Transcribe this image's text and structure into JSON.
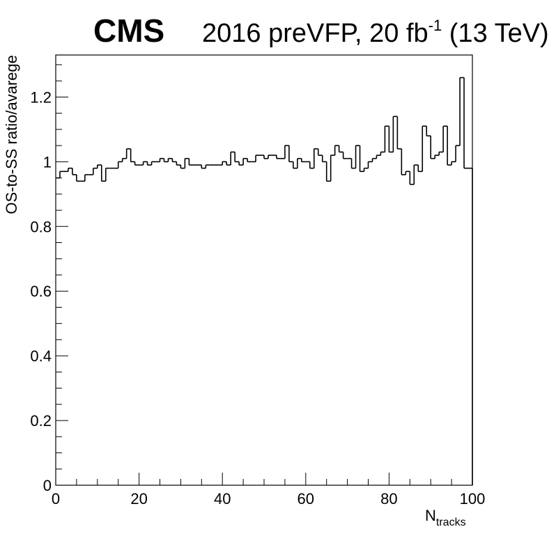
{
  "header": {
    "experiment": "CMS",
    "lumi_prefix": "2016 preVFP, 20 fb",
    "lumi_exponent": "-1",
    "lumi_suffix": " (13 TeV)"
  },
  "chart_data": {
    "type": "line",
    "style": "step histogram",
    "title": "",
    "xlabel_main": "N",
    "xlabel_sub": "tracks",
    "ylabel": "OS-to-SS ratio/avarege",
    "xlim": [
      0,
      100
    ],
    "ylim": [
      0,
      1.33
    ],
    "x_ticks": [
      0,
      20,
      40,
      60,
      80,
      100
    ],
    "x_tick_labels": [
      "0",
      "20",
      "40",
      "60",
      "80",
      "100"
    ],
    "y_ticks": [
      0,
      0.2,
      0.4,
      0.6,
      0.8,
      1,
      1.2
    ],
    "y_tick_labels": [
      "0",
      "0.2",
      "0.4",
      "0.6",
      "0.8",
      "1",
      "1.2"
    ],
    "grid": false,
    "line_color": "#000000",
    "bin_width": 1,
    "x": [
      0,
      1,
      2,
      3,
      4,
      5,
      6,
      7,
      8,
      9,
      10,
      11,
      12,
      13,
      14,
      15,
      16,
      17,
      18,
      19,
      20,
      21,
      22,
      23,
      24,
      25,
      26,
      27,
      28,
      29,
      30,
      31,
      32,
      33,
      34,
      35,
      36,
      37,
      38,
      39,
      40,
      41,
      42,
      43,
      44,
      45,
      46,
      47,
      48,
      49,
      50,
      51,
      52,
      53,
      54,
      55,
      56,
      57,
      58,
      59,
      60,
      61,
      62,
      63,
      64,
      65,
      66,
      67,
      68,
      69,
      70,
      71,
      72,
      73,
      74,
      75,
      76,
      77,
      78,
      79,
      80,
      81,
      82,
      83,
      84,
      85,
      86,
      87,
      88,
      89,
      90,
      91,
      92,
      93,
      94,
      95,
      96,
      97,
      98,
      99
    ],
    "values": [
      0.95,
      0.97,
      0.97,
      0.98,
      0.96,
      0.94,
      0.94,
      0.96,
      0.96,
      0.98,
      0.99,
      0.94,
      0.98,
      0.98,
      0.98,
      1.0,
      1.01,
      1.04,
      1.0,
      0.99,
      0.99,
      1.0,
      0.99,
      1.0,
      1.0,
      1.01,
      1.0,
      1.01,
      1.0,
      0.99,
      0.98,
      1.01,
      0.99,
      0.99,
      0.99,
      0.98,
      0.99,
      0.99,
      0.99,
      0.99,
      1.0,
      0.99,
      1.03,
      1.0,
      0.99,
      1.01,
      1.0,
      1.0,
      1.02,
      1.02,
      1.01,
      1.02,
      1.02,
      1.01,
      1.01,
      1.05,
      1.0,
      0.98,
      1.01,
      1.0,
      1.0,
      0.98,
      1.04,
      1.02,
      1.0,
      0.94,
      1.02,
      1.05,
      1.03,
      1.01,
      1.01,
      0.98,
      1.05,
      0.97,
      0.98,
      1.0,
      1.01,
      1.02,
      1.03,
      1.11,
      1.03,
      1.14,
      1.04,
      0.96,
      0.97,
      0.93,
      0.99,
      0.97,
      1.11,
      1.08,
      1.01,
      1.02,
      1.03,
      1.11,
      0.99,
      1.0,
      1.05,
      1.26,
      0.98,
      0.98
    ]
  }
}
